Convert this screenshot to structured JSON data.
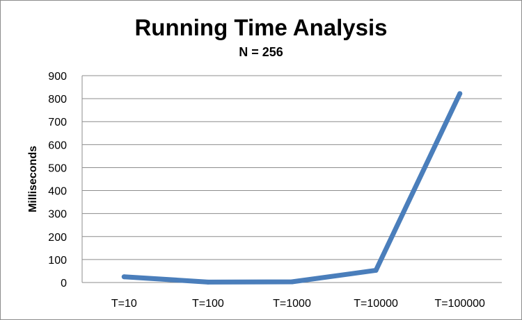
{
  "chart_data": {
    "type": "line",
    "title": "Running Time Analysis",
    "subtitle": "N = 256",
    "xlabel": "",
    "ylabel": "Milliseconds",
    "categories": [
      "T=10",
      "T=100",
      "T=1000",
      "T=10000",
      "T=100000"
    ],
    "series": [
      {
        "values": [
          25,
          2,
          3,
          53,
          822
        ]
      }
    ],
    "ylim": [
      0,
      900
    ],
    "yticks": [
      0,
      100,
      200,
      300,
      400,
      500,
      600,
      700,
      800,
      900
    ],
    "grid": true,
    "legend": "none",
    "line_color": "#4a7ebb"
  }
}
